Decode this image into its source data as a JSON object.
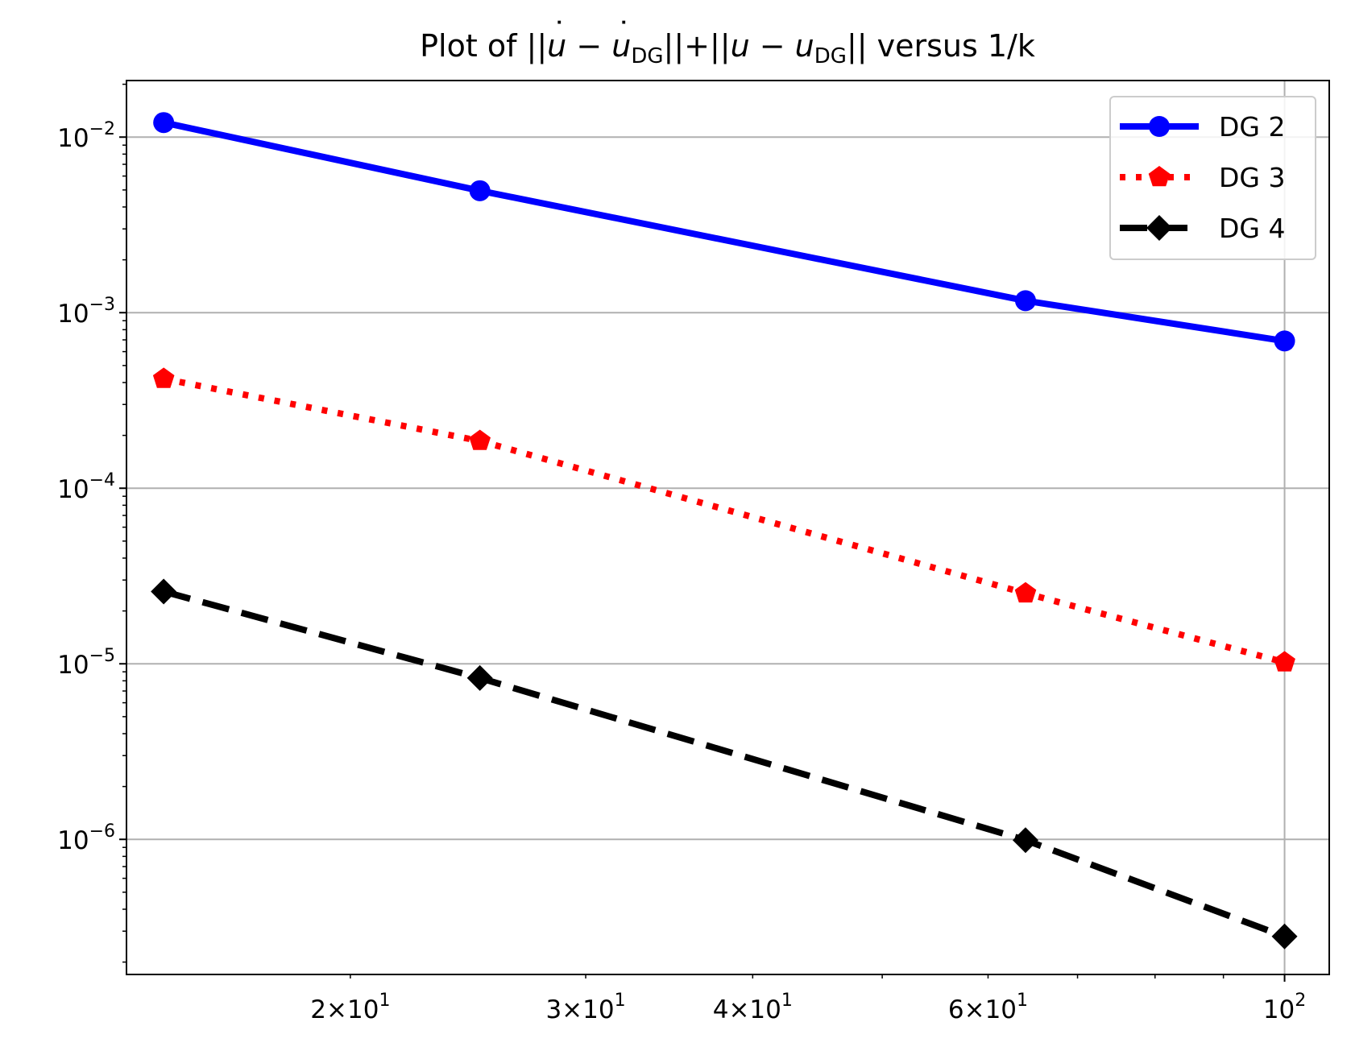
{
  "chart_data": {
    "type": "line",
    "title_parts": [
      "Plot of ||",
      "u",
      " − ",
      "u",
      "DG",
      "||+||",
      "u",
      " − ",
      "u",
      "DG",
      "|| versus 1/k"
    ],
    "xscale": "log",
    "yscale": "log",
    "xlim": [
      13.6,
      108
    ],
    "ylim": [
      1.7e-07,
      0.021
    ],
    "grid": true,
    "legend_position": "upper right",
    "x_ticks": [
      {
        "value": 20,
        "mantissa": "2",
        "base": "10",
        "exp": "1"
      },
      {
        "value": 30,
        "mantissa": "3",
        "base": "10",
        "exp": "1"
      },
      {
        "value": 40,
        "mantissa": "4",
        "base": "10",
        "exp": "1"
      },
      {
        "value": 60,
        "mantissa": "6",
        "base": "10",
        "exp": "1"
      },
      {
        "value": 100,
        "mantissa": "",
        "base": "10",
        "exp": "2"
      }
    ],
    "y_ticks": [
      {
        "value": 0.01,
        "base": "10",
        "exp": "−2"
      },
      {
        "value": 0.001,
        "base": "10",
        "exp": "−3"
      },
      {
        "value": 0.0001,
        "base": "10",
        "exp": "−4"
      },
      {
        "value": 1e-05,
        "base": "10",
        "exp": "−5"
      },
      {
        "value": 1e-06,
        "base": "10",
        "exp": "−6"
      }
    ],
    "x": [
      14.5,
      25,
      64,
      100
    ],
    "series": [
      {
        "name": "DG 2",
        "color": "#0000ff",
        "marker": "circle",
        "linestyle": "solid",
        "values": [
          0.0121,
          0.00495,
          0.00117,
          0.00069
        ]
      },
      {
        "name": "DG 3",
        "color": "#ff0000",
        "marker": "pentagon",
        "linestyle": "dotted",
        "values": [
          0.00042,
          0.000186,
          2.52e-05,
          1.02e-05
        ]
      },
      {
        "name": "DG 4",
        "color": "#000000",
        "marker": "diamond",
        "linestyle": "dashed",
        "values": [
          2.58e-05,
          8.3e-06,
          9.9e-07,
          2.8e-07
        ]
      }
    ]
  }
}
